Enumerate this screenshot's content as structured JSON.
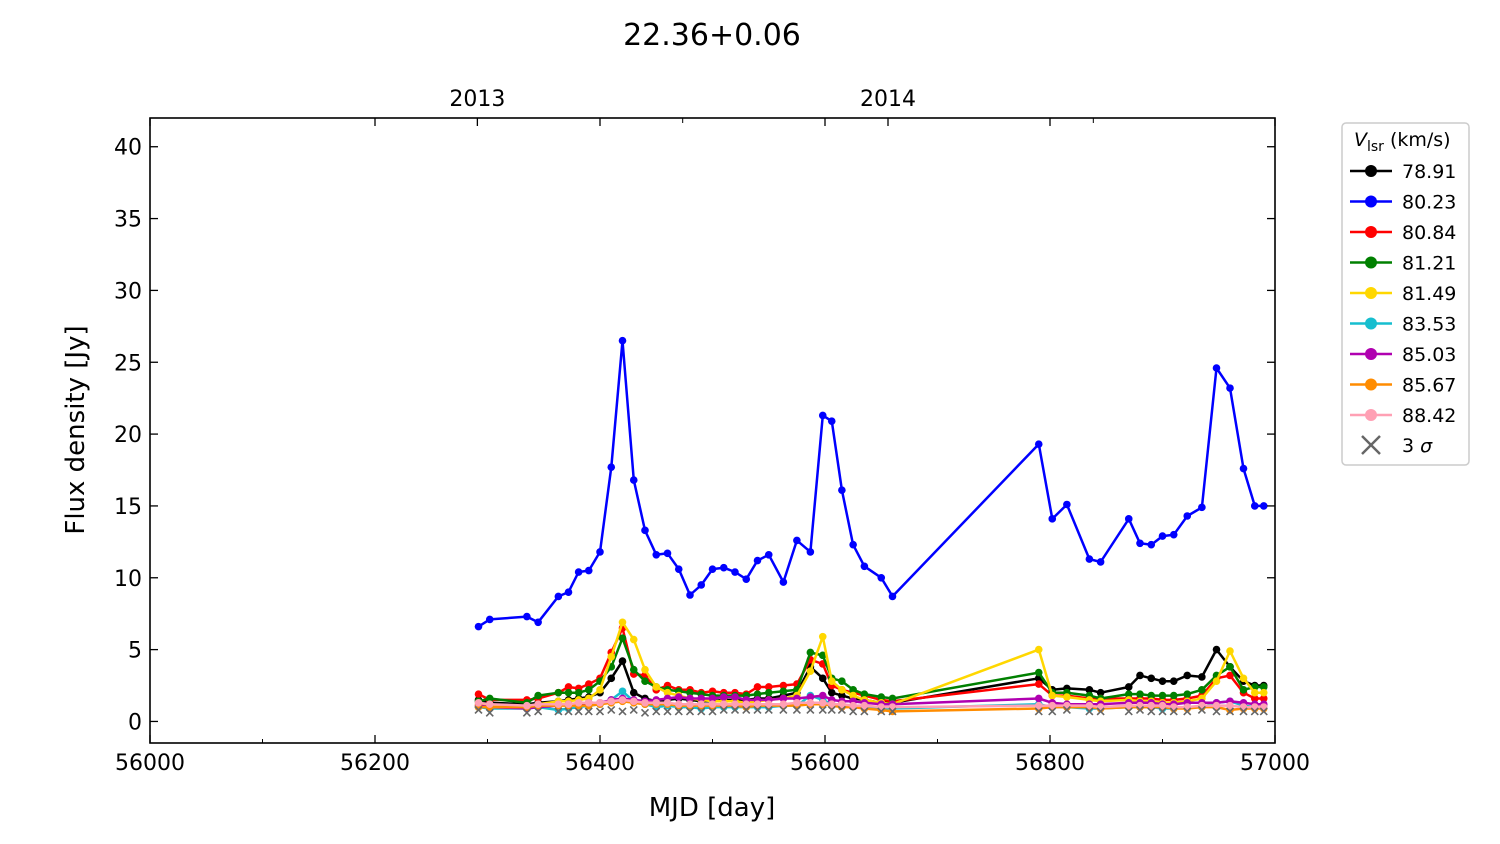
{
  "chart_data": {
    "type": "line",
    "title": "22.36+0.06",
    "xlabel": "MJD [day]",
    "ylabel": "Flux density [Jy]",
    "xlim": [
      56000,
      57000
    ],
    "ylim": [
      -1.5,
      42
    ],
    "x_ticks": [
      56000,
      56200,
      56400,
      56600,
      56800,
      57000
    ],
    "y_ticks": [
      0,
      5,
      10,
      15,
      20,
      25,
      30,
      35,
      40
    ],
    "top_axis": {
      "ticks": [
        {
          "x": 56291,
          "label": "2013"
        },
        {
          "x": 56656,
          "label": "2014"
        }
      ]
    },
    "legend": {
      "title_main": "V",
      "title_sub": "lsr",
      "title_unit": "(km/s)",
      "placement": "outside-right-top",
      "sigma_label": "3",
      "sigma_symbol": "σ"
    },
    "grid": false,
    "series": [
      {
        "name": "78.91",
        "color": "#000000",
        "x": [
          56292,
          56302,
          56335,
          56345,
          56363,
          56372,
          56381,
          56390,
          56400,
          56410,
          56420,
          56430,
          56440,
          56450,
          56460,
          56470,
          56480,
          56490,
          56500,
          56510,
          56520,
          56530,
          56540,
          56550,
          56563,
          56575,
          56587,
          56598,
          56606,
          56615,
          56625,
          56635,
          56650,
          56660,
          56790,
          56802,
          56815,
          56835,
          56845,
          56870,
          56880,
          56890,
          56900,
          56910,
          56922,
          56935,
          56948,
          56960,
          56972,
          56982,
          56990
        ],
        "y": [
          1.5,
          1.3,
          1.2,
          1.3,
          1.4,
          1.5,
          1.6,
          1.7,
          2.0,
          3.0,
          4.2,
          2.0,
          1.6,
          1.4,
          1.5,
          1.6,
          1.5,
          1.4,
          1.4,
          1.5,
          1.5,
          1.5,
          1.6,
          1.6,
          1.8,
          2.0,
          3.8,
          3.0,
          2.0,
          1.8,
          1.6,
          1.5,
          1.3,
          1.3,
          3.0,
          2.2,
          2.3,
          2.2,
          2.0,
          2.4,
          3.2,
          3.0,
          2.8,
          2.8,
          3.2,
          3.1,
          5.0,
          3.8,
          2.8,
          2.5,
          2.5
        ]
      },
      {
        "name": "80.23",
        "color": "#0000ff",
        "x": [
          56292,
          56302,
          56335,
          56345,
          56363,
          56372,
          56381,
          56390,
          56400,
          56410,
          56420,
          56430,
          56440,
          56450,
          56460,
          56470,
          56480,
          56490,
          56500,
          56510,
          56520,
          56530,
          56540,
          56550,
          56563,
          56575,
          56587,
          56598,
          56606,
          56615,
          56625,
          56635,
          56650,
          56660,
          56790,
          56802,
          56815,
          56835,
          56845,
          56870,
          56880,
          56890,
          56900,
          56910,
          56922,
          56935,
          56948,
          56960,
          56972,
          56982,
          56990
        ],
        "y": [
          6.6,
          7.1,
          7.3,
          6.9,
          8.7,
          9.0,
          10.4,
          10.5,
          11.8,
          17.7,
          26.5,
          16.8,
          13.3,
          11.6,
          11.7,
          10.6,
          8.8,
          9.5,
          10.6,
          10.7,
          10.4,
          9.9,
          11.2,
          11.6,
          9.7,
          12.6,
          11.8,
          21.3,
          20.9,
          16.1,
          12.3,
          10.8,
          10.0,
          8.7,
          19.3,
          14.1,
          15.1,
          11.3,
          11.1,
          14.1,
          12.4,
          12.3,
          12.9,
          13.0,
          14.3,
          14.9,
          24.6,
          23.2,
          17.6,
          15.0,
          15.0
        ]
      },
      {
        "name": "80.84",
        "color": "#ff0000",
        "x": [
          56292,
          56302,
          56335,
          56345,
          56363,
          56372,
          56381,
          56390,
          56400,
          56410,
          56420,
          56430,
          56440,
          56450,
          56460,
          56470,
          56480,
          56490,
          56500,
          56510,
          56520,
          56530,
          56540,
          56550,
          56563,
          56575,
          56587,
          56598,
          56606,
          56615,
          56625,
          56635,
          56650,
          56660,
          56790,
          56802,
          56815,
          56835,
          56845,
          56870,
          56880,
          56890,
          56900,
          56910,
          56922,
          56935,
          56948,
          56960,
          56972,
          56982,
          56990
        ],
        "y": [
          1.9,
          1.5,
          1.5,
          1.6,
          2.0,
          2.4,
          2.3,
          2.6,
          3.0,
          4.8,
          6.5,
          3.3,
          3.2,
          2.2,
          2.5,
          2.2,
          2.2,
          2.0,
          2.1,
          2.0,
          2.0,
          1.9,
          2.4,
          2.4,
          2.5,
          2.6,
          4.3,
          4.0,
          2.5,
          2.2,
          2.0,
          1.8,
          1.5,
          1.4,
          2.6,
          1.8,
          1.8,
          1.6,
          1.6,
          1.6,
          1.6,
          1.6,
          1.5,
          1.5,
          1.6,
          1.8,
          3.0,
          3.2,
          2.0,
          1.6,
          1.6
        ]
      },
      {
        "name": "81.21",
        "color": "#008000",
        "x": [
          56292,
          56302,
          56335,
          56345,
          56363,
          56372,
          56381,
          56390,
          56400,
          56410,
          56420,
          56430,
          56440,
          56450,
          56460,
          56470,
          56480,
          56490,
          56500,
          56510,
          56520,
          56530,
          56540,
          56550,
          56563,
          56575,
          56587,
          56598,
          56606,
          56615,
          56625,
          56635,
          56650,
          56660,
          56790,
          56802,
          56815,
          56835,
          56845,
          56870,
          56880,
          56890,
          56900,
          56910,
          56922,
          56935,
          56948,
          56960,
          56972,
          56982,
          56990
        ],
        "y": [
          1.4,
          1.6,
          1.3,
          1.8,
          2.0,
          2.0,
          2.0,
          2.2,
          2.8,
          3.8,
          5.8,
          3.6,
          2.8,
          2.4,
          2.2,
          2.1,
          2.0,
          1.9,
          1.8,
          1.8,
          1.8,
          1.8,
          1.9,
          2.0,
          2.1,
          2.2,
          4.8,
          4.6,
          3.0,
          2.8,
          2.2,
          1.9,
          1.7,
          1.6,
          3.4,
          2.0,
          2.0,
          1.8,
          1.6,
          1.9,
          1.9,
          1.8,
          1.8,
          1.8,
          1.9,
          2.2,
          3.2,
          3.8,
          2.2,
          2.4,
          2.4
        ]
      },
      {
        "name": "81.49",
        "color": "#ffd700",
        "x": [
          56292,
          56302,
          56335,
          56345,
          56363,
          56372,
          56381,
          56390,
          56400,
          56410,
          56420,
          56430,
          56440,
          56450,
          56460,
          56470,
          56480,
          56490,
          56500,
          56510,
          56520,
          56530,
          56540,
          56550,
          56563,
          56575,
          56587,
          56598,
          56606,
          56615,
          56625,
          56635,
          56650,
          56660,
          56790,
          56802,
          56815,
          56835,
          56845,
          56870,
          56880,
          56890,
          56900,
          56910,
          56922,
          56935,
          56948,
          56960,
          56972,
          56982,
          56990
        ],
        "y": [
          1.2,
          1.1,
          1.0,
          1.2,
          1.4,
          1.4,
          1.5,
          1.6,
          2.2,
          4.5,
          6.9,
          5.7,
          3.6,
          2.4,
          2.0,
          1.8,
          1.6,
          1.5,
          1.4,
          1.4,
          1.4,
          1.3,
          1.4,
          1.5,
          1.6,
          1.8,
          3.5,
          5.9,
          2.8,
          2.2,
          1.8,
          1.5,
          1.3,
          1.2,
          5.0,
          1.8,
          1.7,
          1.5,
          1.4,
          1.5,
          1.4,
          1.4,
          1.3,
          1.3,
          1.4,
          1.6,
          2.8,
          4.9,
          3.0,
          2.0,
          2.0
        ]
      },
      {
        "name": "83.53",
        "color": "#17becf",
        "x": [
          56292,
          56302,
          56335,
          56345,
          56363,
          56372,
          56381,
          56390,
          56400,
          56410,
          56420,
          56430,
          56440,
          56450,
          56460,
          56470,
          56480,
          56490,
          56500,
          56510,
          56520,
          56530,
          56540,
          56550,
          56563,
          56575,
          56587,
          56598,
          56606,
          56615,
          56625,
          56635,
          56650,
          56660,
          56790,
          56802,
          56815,
          56835,
          56845,
          56870,
          56880,
          56890,
          56900,
          56910,
          56922,
          56935,
          56948,
          56960,
          56972,
          56982,
          56990
        ],
        "y": [
          1.0,
          0.9,
          0.9,
          1.0,
          0.8,
          0.9,
          1.0,
          1.1,
          1.2,
          1.5,
          2.1,
          1.4,
          1.2,
          1.0,
          1.1,
          1.0,
          1.0,
          0.9,
          1.0,
          1.0,
          1.0,
          1.0,
          1.0,
          1.0,
          1.1,
          1.1,
          1.8,
          1.5,
          1.2,
          1.1,
          1.0,
          1.0,
          0.9,
          0.9,
          1.2,
          1.0,
          1.0,
          0.9,
          0.9,
          1.0,
          1.0,
          1.0,
          0.9,
          0.9,
          1.0,
          1.0,
          1.3,
          1.4,
          1.1,
          1.0,
          1.0
        ]
      },
      {
        "name": "85.03",
        "color": "#b000b0",
        "x": [
          56292,
          56302,
          56335,
          56345,
          56363,
          56372,
          56381,
          56390,
          56400,
          56410,
          56420,
          56430,
          56440,
          56450,
          56460,
          56470,
          56480,
          56490,
          56500,
          56510,
          56520,
          56530,
          56540,
          56550,
          56563,
          56575,
          56587,
          56598,
          56606,
          56615,
          56625,
          56635,
          56650,
          56660,
          56790,
          56802,
          56815,
          56835,
          56845,
          56870,
          56880,
          56890,
          56900,
          56910,
          56922,
          56935,
          56948,
          56960,
          56972,
          56982,
          56990
        ],
        "y": [
          1.1,
          1.0,
          0.9,
          1.0,
          1.1,
          1.2,
          1.2,
          1.3,
          1.3,
          1.5,
          1.6,
          1.5,
          1.4,
          1.5,
          1.6,
          1.7,
          1.6,
          1.6,
          1.6,
          1.7,
          1.7,
          1.5,
          1.5,
          1.5,
          1.6,
          1.6,
          1.7,
          1.8,
          1.5,
          1.4,
          1.4,
          1.3,
          1.2,
          1.2,
          1.6,
          1.3,
          1.2,
          1.2,
          1.2,
          1.3,
          1.3,
          1.3,
          1.2,
          1.2,
          1.3,
          1.3,
          1.3,
          1.4,
          1.3,
          1.2,
          1.2
        ]
      },
      {
        "name": "85.67",
        "color": "#ff8c00",
        "x": [
          56292,
          56302,
          56335,
          56345,
          56363,
          56372,
          56381,
          56390,
          56400,
          56410,
          56420,
          56430,
          56440,
          56450,
          56460,
          56470,
          56480,
          56490,
          56500,
          56510,
          56520,
          56530,
          56540,
          56550,
          56563,
          56575,
          56587,
          56598,
          56606,
          56615,
          56625,
          56635,
          56650,
          56660,
          56790,
          56802,
          56815,
          56835,
          56845,
          56870,
          56880,
          56890,
          56900,
          56910,
          56922,
          56935,
          56948,
          56960,
          56972,
          56982,
          56990
        ],
        "y": [
          1.0,
          1.0,
          1.0,
          1.1,
          1.1,
          1.1,
          1.1,
          1.1,
          1.2,
          1.3,
          1.4,
          1.3,
          1.2,
          1.2,
          1.2,
          1.1,
          1.1,
          1.1,
          1.1,
          1.1,
          1.1,
          1.0,
          1.1,
          1.1,
          1.1,
          1.1,
          1.2,
          1.2,
          1.1,
          1.0,
          1.0,
          0.9,
          0.8,
          0.7,
          0.9,
          1.0,
          1.0,
          1.0,
          0.9,
          1.0,
          1.0,
          1.0,
          1.0,
          0.9,
          0.9,
          1.0,
          1.0,
          0.8,
          0.9,
          0.9,
          0.9
        ]
      },
      {
        "name": "88.42",
        "color": "#ffa0b4",
        "x": [
          56292,
          56302,
          56335,
          56345,
          56363,
          56372,
          56381,
          56390,
          56400,
          56410,
          56420,
          56430,
          56440,
          56450,
          56460,
          56470,
          56480,
          56490,
          56500,
          56510,
          56520,
          56530,
          56540,
          56550,
          56563,
          56575,
          56587,
          56598,
          56606,
          56615,
          56625,
          56635,
          56650,
          56660,
          56790,
          56802,
          56815,
          56835,
          56845,
          56870,
          56880,
          56890,
          56900,
          56910,
          56922,
          56935,
          56948,
          56960,
          56972,
          56982,
          56990
        ],
        "y": [
          1.3,
          1.2,
          1.1,
          1.2,
          1.2,
          1.2,
          1.3,
          1.3,
          1.3,
          1.4,
          1.5,
          1.4,
          1.3,
          1.3,
          1.3,
          1.2,
          1.2,
          1.2,
          1.2,
          1.2,
          1.2,
          1.2,
          1.2,
          1.2,
          1.2,
          1.3,
          1.3,
          1.3,
          1.2,
          1.2,
          1.1,
          1.1,
          1.0,
          1.0,
          1.1,
          1.1,
          1.1,
          1.1,
          1.0,
          1.1,
          1.1,
          1.1,
          1.1,
          1.0,
          1.0,
          1.1,
          1.1,
          1.1,
          1.0,
          1.0,
          1.0
        ]
      }
    ],
    "sigma_x": [
      56292,
      56302,
      56335,
      56345,
      56363,
      56372,
      56381,
      56390,
      56400,
      56410,
      56420,
      56430,
      56440,
      56450,
      56460,
      56470,
      56480,
      56490,
      56500,
      56510,
      56520,
      56530,
      56540,
      56550,
      56563,
      56575,
      56587,
      56598,
      56606,
      56615,
      56625,
      56635,
      56650,
      56660,
      56790,
      56802,
      56815,
      56835,
      56845,
      56870,
      56880,
      56890,
      56900,
      56910,
      56922,
      56935,
      56948,
      56960,
      56972,
      56982,
      56990
    ],
    "sigma_y": [
      0.8,
      0.6,
      0.6,
      0.7,
      0.7,
      0.7,
      0.7,
      0.7,
      0.7,
      0.8,
      0.7,
      0.8,
      0.6,
      0.7,
      0.7,
      0.7,
      0.7,
      0.7,
      0.7,
      0.8,
      0.8,
      0.8,
      0.8,
      0.8,
      0.8,
      0.8,
      0.8,
      0.8,
      0.8,
      0.8,
      0.7,
      0.7,
      0.7,
      0.7,
      0.7,
      0.7,
      0.8,
      0.7,
      0.7,
      0.7,
      0.8,
      0.7,
      0.7,
      0.7,
      0.7,
      0.8,
      0.7,
      0.7,
      0.7,
      0.7,
      0.7
    ],
    "sigma_color": "#666666"
  }
}
